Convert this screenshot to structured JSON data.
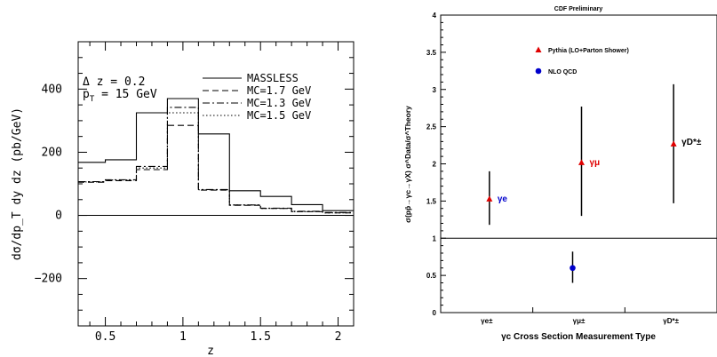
{
  "chart_data": [
    {
      "type": "line",
      "xlabel": "z",
      "ylabel": "dσ/dp_T dy dz (pb/GeV)",
      "xlim": [
        0.325,
        2.1
      ],
      "ylim": [
        -350,
        550
      ],
      "x_ticks": [
        "0.5",
        "1",
        "1.5",
        "2"
      ],
      "y_ticks": [
        "−200",
        "0",
        "200",
        "400"
      ],
      "annotations": [
        "Δ z = 0.2",
        "p",
        "T",
        " = 15 GeV"
      ],
      "legend_placement": "top-right",
      "bin_edges": [
        0.3,
        0.5,
        0.7,
        0.9,
        1.1,
        1.3,
        1.5,
        1.7,
        1.9,
        2.1
      ],
      "series": [
        {
          "name": "MASSLESS",
          "style": "solid",
          "values": [
            168,
            176,
            325,
            370,
            258,
            78,
            60,
            34,
            15
          ]
        },
        {
          "name": "MC=1.7 GeV",
          "style": "dashed",
          "values": [
            105,
            110,
            145,
            285,
            80,
            32,
            22,
            12,
            8
          ]
        },
        {
          "name": "MC=1.3 GeV",
          "style": "dashdot",
          "values": [
            107,
            113,
            155,
            342,
            82,
            33,
            23,
            13,
            9
          ]
        },
        {
          "name": "MC=1.5 GeV",
          "style": "dotted",
          "values": [
            106,
            112,
            150,
            325,
            81,
            33,
            22,
            12,
            8
          ]
        }
      ]
    },
    {
      "type": "scatter",
      "title": "CDF Preliminary",
      "xlabel": "γc Cross Section Measurement Type",
      "ylabel": "σ(pp̄→γc→γX)  σ^Data/σ^Theory",
      "ylim": [
        0,
        4
      ],
      "y_ticks": [
        "0",
        "0.5",
        "1",
        "1.5",
        "2",
        "2.5",
        "3",
        "3.5",
        "4"
      ],
      "categories": [
        "γe±",
        "γμ±",
        "γD*±"
      ],
      "reference_line": 1,
      "legend_placement": "top-left",
      "legend": [
        {
          "name": "Pythia (LO+Parton Shower)",
          "marker": "triangle",
          "color": "#e00000"
        },
        {
          "name": "NLO QCD",
          "marker": "circle",
          "color": "#0000cc"
        }
      ],
      "series": [
        {
          "name": "Pythia (LO+Parton Shower)",
          "points": [
            {
              "category": "γe±",
              "label": "γe",
              "y": 1.53,
              "err_low": 1.18,
              "err_high": 1.9
            },
            {
              "category": "γμ±",
              "label": "γμ",
              "y": 2.02,
              "err_low": 1.3,
              "err_high": 2.77
            },
            {
              "category": "γD*±",
              "label": "γD*±",
              "y": 2.27,
              "err_low": 1.47,
              "err_high": 3.07
            }
          ]
        },
        {
          "name": "NLO QCD",
          "points": [
            {
              "category": "γμ±",
              "y": 0.6,
              "err_low": 0.4,
              "err_high": 0.82
            }
          ]
        }
      ]
    }
  ]
}
